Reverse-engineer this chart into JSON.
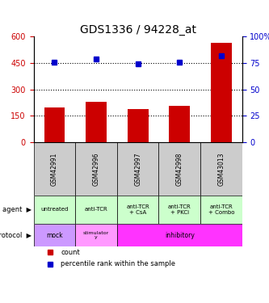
{
  "title": "GDS1336 / 94228_at",
  "samples": [
    "GSM42991",
    "GSM42996",
    "GSM42997",
    "GSM42998",
    "GSM43013"
  ],
  "counts": [
    200,
    230,
    188,
    208,
    565
  ],
  "percentiles": [
    76,
    79,
    74,
    76,
    82
  ],
  "left_yticks": [
    0,
    150,
    300,
    450,
    600
  ],
  "right_yticks": [
    0,
    25,
    50,
    75,
    100
  ],
  "bar_color": "#cc0000",
  "dot_color": "#0000cc",
  "grid_color": "#000000",
  "agent_labels": [
    "untreated",
    "anti-TCR",
    "anti-TCR\n+ CsA",
    "anti-TCR\n+ PKCi",
    "anti-TCR\n+ Combo"
  ],
  "protocol_labels": [
    "mock",
    "stimulator\ny",
    "inhibitory",
    "inhibitory",
    "inhibitory"
  ],
  "agent_colors": [
    "#ccffcc",
    "#ccffcc",
    "#ccffcc",
    "#ccffcc",
    "#ccffcc"
  ],
  "protocol_mock_color": "#cc99ff",
  "protocol_stim_color": "#ffccff",
  "protocol_inhib_color": "#ff66ff",
  "sample_bg_color": "#cccccc",
  "legend_count_color": "#cc0000",
  "legend_dot_color": "#0000cc"
}
